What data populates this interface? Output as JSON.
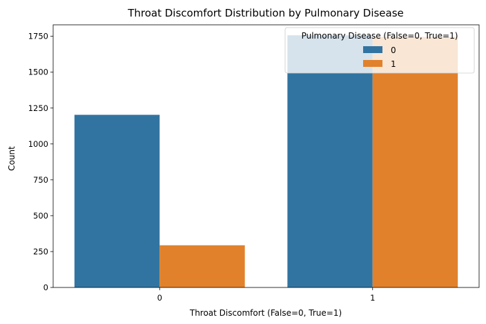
{
  "chart_data": {
    "type": "bar",
    "title": "Throat Discomfort Distribution by Pulmonary Disease",
    "xlabel": "Throat Discomfort (False=0, True=1)",
    "ylabel": "Count",
    "categories": [
      "0",
      "1"
    ],
    "ylim": [
      0,
      1830
    ],
    "yticks": [
      0,
      250,
      500,
      750,
      1000,
      1250,
      1500,
      1750
    ],
    "grid": false,
    "legend": {
      "title": "Pulmonary Disease (False=0, True=1)",
      "placement": "top-right"
    },
    "series": [
      {
        "name": "0",
        "color": "#3274a1",
        "values": [
          1203,
          1757
        ]
      },
      {
        "name": "1",
        "color": "#e1812c",
        "values": [
          294,
          1746
        ]
      }
    ]
  }
}
